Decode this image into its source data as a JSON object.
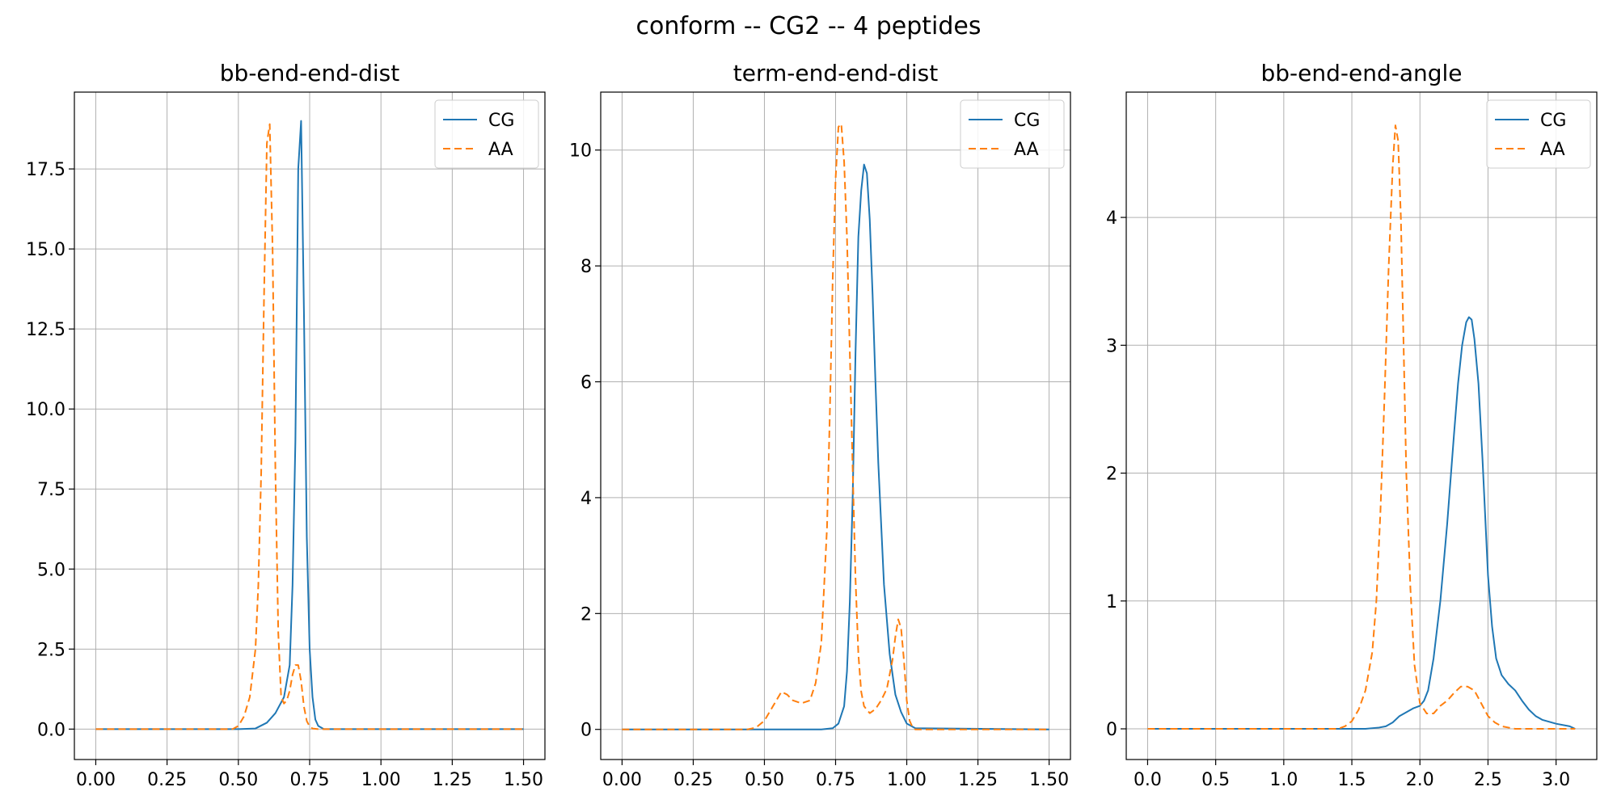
{
  "figure": {
    "title": "conform -- CG2 -- 4 peptides"
  },
  "series_style": {
    "CG": {
      "color": "#1f77b4",
      "dash": ""
    },
    "AA": {
      "color": "#ff7f0e",
      "dash": "9,5"
    }
  },
  "chart_data": [
    {
      "type": "line",
      "title": "bb-end-end-dist",
      "xlabel": "",
      "ylabel": "",
      "xlim": [
        -0.075,
        1.575
      ],
      "ylim": [
        -0.95,
        19.9
      ],
      "xticks": [
        0.0,
        0.25,
        0.5,
        0.75,
        1.0,
        1.25,
        1.5
      ],
      "xtick_labels": [
        "0.00",
        "0.25",
        "0.50",
        "0.75",
        "1.00",
        "1.25",
        "1.50"
      ],
      "yticks": [
        0.0,
        2.5,
        5.0,
        7.5,
        10.0,
        12.5,
        15.0,
        17.5
      ],
      "ytick_labels": [
        "0.0",
        "2.5",
        "5.0",
        "7.5",
        "10.0",
        "12.5",
        "15.0",
        "17.5"
      ],
      "grid": true,
      "legend": "upper right",
      "series": [
        {
          "name": "CG",
          "x": [
            0.0,
            0.5,
            0.56,
            0.6,
            0.63,
            0.66,
            0.68,
            0.69,
            0.7,
            0.71,
            0.72,
            0.73,
            0.74,
            0.75,
            0.76,
            0.77,
            0.78,
            0.8,
            1.5
          ],
          "y": [
            0.0,
            0.0,
            0.02,
            0.2,
            0.5,
            1.0,
            2.0,
            4.5,
            9.0,
            17.5,
            19.0,
            13.0,
            6.0,
            2.5,
            1.0,
            0.3,
            0.1,
            0.0,
            0.0
          ]
        },
        {
          "name": "AA",
          "x": [
            0.0,
            0.48,
            0.5,
            0.52,
            0.54,
            0.56,
            0.57,
            0.58,
            0.59,
            0.6,
            0.61,
            0.62,
            0.63,
            0.64,
            0.65,
            0.66,
            0.67,
            0.68,
            0.69,
            0.7,
            0.71,
            0.72,
            0.73,
            0.74,
            0.75,
            0.76,
            0.78,
            1.5
          ],
          "y": [
            0.0,
            0.0,
            0.1,
            0.4,
            1.0,
            2.5,
            4.5,
            8.0,
            13.5,
            18.3,
            18.9,
            15.0,
            8.0,
            3.0,
            1.0,
            0.8,
            0.9,
            1.2,
            1.7,
            2.0,
            2.0,
            1.5,
            0.7,
            0.25,
            0.08,
            0.02,
            0.0,
            0.0
          ]
        }
      ]
    },
    {
      "type": "line",
      "title": "term-end-end-dist",
      "xlabel": "",
      "ylabel": "",
      "xlim": [
        -0.075,
        1.575
      ],
      "ylim": [
        -0.52,
        11.0
      ],
      "xticks": [
        0.0,
        0.25,
        0.5,
        0.75,
        1.0,
        1.25,
        1.5
      ],
      "xtick_labels": [
        "0.00",
        "0.25",
        "0.50",
        "0.75",
        "1.00",
        "1.25",
        "1.50"
      ],
      "yticks": [
        0,
        2,
        4,
        6,
        8,
        10
      ],
      "ytick_labels": [
        "0",
        "2",
        "4",
        "6",
        "8",
        "10"
      ],
      "grid": true,
      "legend": "upper right",
      "series": [
        {
          "name": "CG",
          "x": [
            0.0,
            0.7,
            0.74,
            0.76,
            0.78,
            0.79,
            0.8,
            0.81,
            0.82,
            0.83,
            0.84,
            0.85,
            0.86,
            0.87,
            0.88,
            0.89,
            0.9,
            0.92,
            0.94,
            0.96,
            0.98,
            1.0,
            1.03,
            1.5
          ],
          "y": [
            0.0,
            0.0,
            0.02,
            0.1,
            0.4,
            1.0,
            2.2,
            4.0,
            6.5,
            8.5,
            9.3,
            9.75,
            9.6,
            8.8,
            7.5,
            6.0,
            4.6,
            2.5,
            1.3,
            0.6,
            0.3,
            0.1,
            0.02,
            0.0
          ]
        },
        {
          "name": "AA",
          "x": [
            0.0,
            0.44,
            0.47,
            0.5,
            0.53,
            0.56,
            0.58,
            0.6,
            0.63,
            0.66,
            0.68,
            0.7,
            0.72,
            0.73,
            0.74,
            0.75,
            0.76,
            0.77,
            0.78,
            0.79,
            0.8,
            0.81,
            0.82,
            0.83,
            0.84,
            0.85,
            0.87,
            0.89,
            0.91,
            0.93,
            0.95,
            0.96,
            0.97,
            0.98,
            0.99,
            1.0,
            1.01,
            1.02,
            1.03,
            1.5
          ],
          "y": [
            0.0,
            0.0,
            0.03,
            0.15,
            0.4,
            0.65,
            0.6,
            0.5,
            0.45,
            0.5,
            0.8,
            1.5,
            3.5,
            5.5,
            7.8,
            9.5,
            10.4,
            10.45,
            9.8,
            8.5,
            6.5,
            4.5,
            2.6,
            1.3,
            0.65,
            0.4,
            0.28,
            0.35,
            0.5,
            0.7,
            1.2,
            1.6,
            1.9,
            1.75,
            1.2,
            0.5,
            0.15,
            0.04,
            0.0,
            0.0
          ]
        }
      ]
    },
    {
      "type": "line",
      "title": "bb-end-end-angle",
      "xlabel": "",
      "ylabel": "",
      "xlim": [
        -0.157,
        3.299
      ],
      "ylim": [
        -0.24,
        4.98
      ],
      "xticks": [
        0.0,
        0.5,
        1.0,
        1.5,
        2.0,
        2.5,
        3.0
      ],
      "xtick_labels": [
        "0.0",
        "0.5",
        "1.0",
        "1.5",
        "2.0",
        "2.5",
        "3.0"
      ],
      "yticks": [
        0,
        1,
        2,
        3,
        4
      ],
      "ytick_labels": [
        "0",
        "1",
        "2",
        "3",
        "4"
      ],
      "grid": true,
      "legend": "upper right",
      "series": [
        {
          "name": "CG",
          "x": [
            0.0,
            1.6,
            1.7,
            1.75,
            1.8,
            1.85,
            1.9,
            1.95,
            2.0,
            2.03,
            2.06,
            2.1,
            2.15,
            2.2,
            2.25,
            2.28,
            2.31,
            2.34,
            2.36,
            2.38,
            2.4,
            2.43,
            2.46,
            2.5,
            2.53,
            2.56,
            2.6,
            2.65,
            2.7,
            2.75,
            2.8,
            2.85,
            2.9,
            3.0,
            3.1,
            3.14
          ],
          "y": [
            0.0,
            0.0,
            0.01,
            0.02,
            0.05,
            0.1,
            0.13,
            0.16,
            0.18,
            0.22,
            0.3,
            0.55,
            1.0,
            1.6,
            2.3,
            2.7,
            3.0,
            3.18,
            3.22,
            3.2,
            3.05,
            2.7,
            2.1,
            1.2,
            0.8,
            0.55,
            0.42,
            0.35,
            0.3,
            0.22,
            0.15,
            0.1,
            0.07,
            0.04,
            0.02,
            0.0
          ]
        },
        {
          "name": "AA",
          "x": [
            0.0,
            1.4,
            1.45,
            1.5,
            1.55,
            1.6,
            1.65,
            1.68,
            1.71,
            1.74,
            1.77,
            1.8,
            1.82,
            1.84,
            1.86,
            1.88,
            1.9,
            1.93,
            1.96,
            2.0,
            2.05,
            2.1,
            2.15,
            2.2,
            2.25,
            2.3,
            2.35,
            2.4,
            2.45,
            2.5,
            2.55,
            2.6,
            2.7,
            2.8,
            3.14
          ],
          "y": [
            0.0,
            0.0,
            0.02,
            0.06,
            0.15,
            0.3,
            0.6,
            1.0,
            1.7,
            2.6,
            3.6,
            4.4,
            4.72,
            4.6,
            4.0,
            3.0,
            2.0,
            1.1,
            0.5,
            0.2,
            0.12,
            0.12,
            0.18,
            0.22,
            0.28,
            0.33,
            0.33,
            0.3,
            0.2,
            0.1,
            0.05,
            0.02,
            0.0,
            0.0,
            0.0
          ]
        }
      ]
    }
  ]
}
